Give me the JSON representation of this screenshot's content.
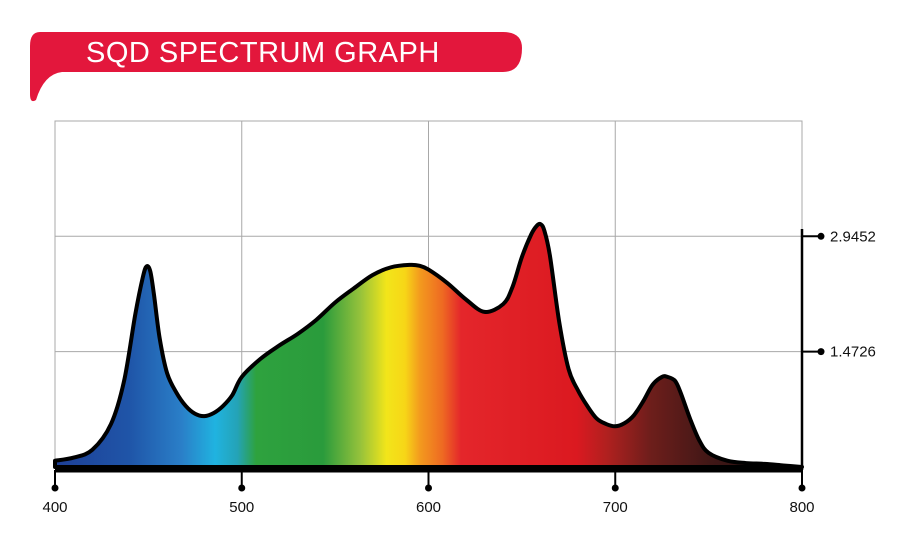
{
  "header": {
    "title": "SQD SPECTRUM GRAPH",
    "banner_color": "#e3173c"
  },
  "chart_data": {
    "type": "area",
    "title": "SQD SPECTRUM GRAPH",
    "xlabel": "",
    "ylabel": "",
    "xlim": [
      400,
      800
    ],
    "ylim": [
      0,
      4.417
    ],
    "grid": true,
    "x_ticks": [
      400,
      500,
      600,
      700,
      800
    ],
    "x_tick_labels": [
      "400",
      "500",
      "600",
      "700",
      "800"
    ],
    "y_ticks": [
      1.4726,
      2.9452
    ],
    "y_tick_labels": [
      "1.4726",
      "2.9452"
    ],
    "fill": "visible-spectrum gradient (blue → cyan → green → yellow → orange → red → dark red)",
    "series": [
      {
        "x": [
          400,
          410,
          420,
          430,
          437,
          443,
          447,
          449,
          451,
          453,
          456,
          460,
          465,
          470,
          475,
          480,
          485,
          490,
          495,
          500,
          510,
          520,
          530,
          540,
          550,
          560,
          570,
          580,
          590,
          595,
          600,
          610,
          620,
          630,
          640,
          645,
          650,
          655,
          658,
          660,
          662,
          665,
          670,
          675,
          680,
          685,
          690,
          695,
          700,
          705,
          710,
          715,
          720,
          725,
          728,
          732,
          735,
          740,
          745,
          750,
          760,
          770,
          780,
          790,
          800
        ],
        "y": [
          0.08,
          0.12,
          0.22,
          0.55,
          1.1,
          1.95,
          2.42,
          2.56,
          2.5,
          2.2,
          1.65,
          1.2,
          0.95,
          0.78,
          0.68,
          0.65,
          0.69,
          0.78,
          0.92,
          1.15,
          1.38,
          1.55,
          1.7,
          1.88,
          2.1,
          2.28,
          2.45,
          2.55,
          2.58,
          2.57,
          2.52,
          2.35,
          2.14,
          1.98,
          2.08,
          2.3,
          2.68,
          2.97,
          3.08,
          3.1,
          3.02,
          2.7,
          1.85,
          1.25,
          0.98,
          0.78,
          0.62,
          0.55,
          0.52,
          0.56,
          0.66,
          0.84,
          1.05,
          1.15,
          1.15,
          1.1,
          0.95,
          0.62,
          0.34,
          0.18,
          0.08,
          0.05,
          0.04,
          0.02,
          0.0
        ]
      }
    ]
  }
}
